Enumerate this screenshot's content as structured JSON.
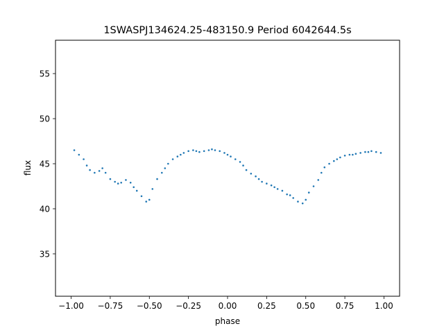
{
  "chart_data": {
    "type": "scatter",
    "title": "1SWASPJ134624.25-483150.9 Period 6042644.5s",
    "xlabel": "phase",
    "ylabel": "flux",
    "xlim": [
      -1.1,
      1.1
    ],
    "ylim": [
      30.3,
      58.7
    ],
    "xticks": [
      -1.0,
      -0.75,
      -0.5,
      -0.25,
      0.0,
      0.25,
      0.5,
      0.75,
      1.0
    ],
    "xtick_labels": [
      "−1.00",
      "−0.75",
      "−0.50",
      "−0.25",
      "0.00",
      "0.25",
      "0.50",
      "0.75",
      "1.00"
    ],
    "yticks": [
      35,
      40,
      45,
      50,
      55
    ],
    "ytick_labels": [
      "35",
      "40",
      "45",
      "50",
      "55"
    ],
    "grid": false,
    "point_color": "#1f77b4",
    "series": [
      {
        "x": [
          -0.98,
          -0.95,
          -0.92,
          -0.9,
          -0.88,
          -0.85,
          -0.82,
          -0.8,
          -0.78,
          -0.75,
          -0.72,
          -0.7,
          -0.68,
          -0.65,
          -0.62,
          -0.6,
          -0.58,
          -0.55,
          -0.52,
          -0.5,
          -0.48,
          -0.45,
          -0.42,
          -0.4,
          -0.38,
          -0.35,
          -0.32,
          -0.3,
          -0.28,
          -0.25,
          -0.22,
          -0.2,
          -0.18,
          -0.15,
          -0.12,
          -0.1,
          -0.08,
          -0.05,
          -0.02,
          0.0,
          0.02,
          0.05,
          0.08,
          0.1,
          0.12,
          0.15,
          0.18,
          0.2,
          0.22,
          0.25,
          0.28,
          0.3,
          0.32,
          0.35,
          0.38,
          0.4,
          0.42,
          0.45,
          0.48,
          0.5,
          0.52,
          0.55,
          0.58,
          0.6,
          0.62,
          0.65,
          0.68,
          0.7,
          0.72,
          0.75,
          0.78,
          0.8,
          0.82,
          0.85,
          0.88,
          0.9,
          0.92,
          0.95,
          0.98
        ],
        "y": [
          46.5,
          46.0,
          45.5,
          44.8,
          44.3,
          44.0,
          44.2,
          44.5,
          44.0,
          43.3,
          43.0,
          42.8,
          42.9,
          43.2,
          42.9,
          42.4,
          42.0,
          41.4,
          40.8,
          41.0,
          42.2,
          43.3,
          44.0,
          44.5,
          45.0,
          45.5,
          45.8,
          46.0,
          46.2,
          46.4,
          46.5,
          46.4,
          46.3,
          46.4,
          46.5,
          46.6,
          46.5,
          46.4,
          46.2,
          46.0,
          45.8,
          45.5,
          45.2,
          44.8,
          44.3,
          43.9,
          43.6,
          43.3,
          43.0,
          42.8,
          42.6,
          42.4,
          42.2,
          42.0,
          41.6,
          41.5,
          41.2,
          40.8,
          40.6,
          41.0,
          41.8,
          42.5,
          43.2,
          44.0,
          44.6,
          45.0,
          45.3,
          45.5,
          45.7,
          45.9,
          46.0,
          46.0,
          46.1,
          46.2,
          46.3,
          46.3,
          46.4,
          46.3,
          46.2
        ]
      }
    ]
  }
}
